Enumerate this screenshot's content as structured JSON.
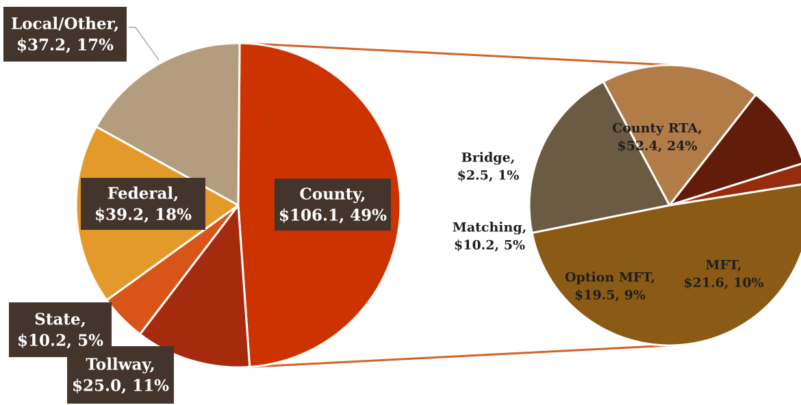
{
  "chart_data": [
    {
      "type": "pie",
      "slices": [
        {
          "name": "County",
          "value": 106.1,
          "percent": "49%",
          "label_line1": "County,",
          "label_line2": "$106.1, 49%",
          "color": "#CC3300"
        },
        {
          "name": "Tollway",
          "value": 25.0,
          "percent": "11%",
          "label_line1": "Tollway,",
          "label_line2": "$25.0, 11%",
          "color": "#A52A0E"
        },
        {
          "name": "State",
          "value": 10.2,
          "percent": "5%",
          "label_line1": "State,",
          "label_line2": "$10.2, 5%",
          "color": "#D85418"
        },
        {
          "name": "Federal",
          "value": 39.2,
          "percent": "18%",
          "label_line1": "Federal,",
          "label_line2": "$39.2, 18%",
          "color": "#E39A2B"
        },
        {
          "name": "Local/Other",
          "value": 37.2,
          "percent": "17%",
          "label_line1": "Local/Other,",
          "label_line2": "$37.2, 17%",
          "color": "#B39D7E"
        }
      ]
    },
    {
      "type": "pie",
      "slices": [
        {
          "name": "County RTA",
          "value": 52.4,
          "percent": "24%",
          "label_line1": "County RTA,",
          "label_line2": "$52.4, 24%",
          "color": "#8B5A14"
        },
        {
          "name": "MFT",
          "value": 21.6,
          "percent": "10%",
          "label_line1": "MFT,",
          "label_line2": "$21.6, 10%",
          "color": "#6B5B42"
        },
        {
          "name": "Option MFT",
          "value": 19.5,
          "percent": "9%",
          "label_line1": "Option MFT,",
          "label_line2": "$19.5, 9%",
          "color": "#B27C48"
        },
        {
          "name": "Matching",
          "value": 10.2,
          "percent": "5%",
          "label_line1": "Matching,",
          "label_line2": "$10.2, 5%",
          "color": "#611C0A"
        },
        {
          "name": "Bridge",
          "value": 2.5,
          "percent": "1%",
          "label_line1": "Bridge,",
          "label_line2": "$2.5, 1%",
          "color": "#972B0E"
        }
      ]
    }
  ],
  "connector_color": "#D2622A",
  "label_box_color": "#43352C",
  "label_text_color": "#FFFFFF",
  "outside_label_text_color": "#1F1F1F"
}
